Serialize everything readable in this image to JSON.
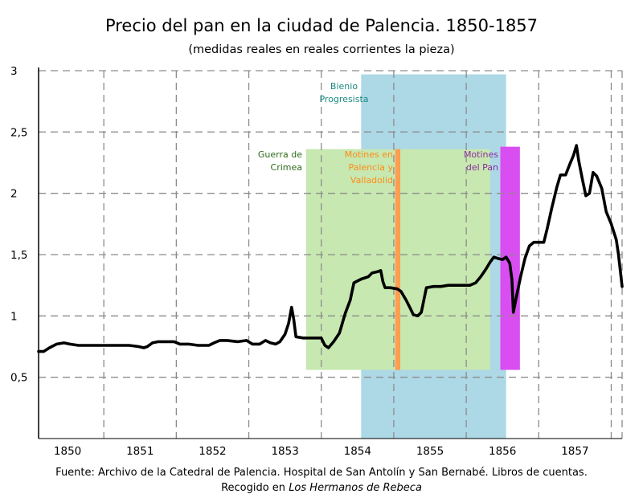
{
  "chart_data": {
    "type": "line",
    "title": "Precio del pan en la ciudad de Palencia. 1850-1857",
    "subtitle": "(medidas reales en reales corrientes la pieza)",
    "xlabel": "",
    "ylabel": "",
    "xlim": [
      1849.55,
      1857.6
    ],
    "ylim": [
      0,
      3
    ],
    "x_ticks": [
      1850,
      1851,
      1852,
      1853,
      1854,
      1855,
      1856,
      1857
    ],
    "x_tick_labels": [
      "1850",
      "1851",
      "1852",
      "1853",
      "1854",
      "1855",
      "1856",
      "1857"
    ],
    "y_ticks": [
      0.5,
      1,
      1.5,
      2,
      2.5,
      3
    ],
    "y_tick_labels": [
      "0,5",
      "1",
      "1,5",
      "2",
      "2,5",
      "3"
    ],
    "grid": true,
    "line_color": "#000000",
    "series": [
      {
        "name": "",
        "points": [
          [
            1849.55,
            0.71
          ],
          [
            1849.62,
            0.71
          ],
          [
            1849.7,
            0.74
          ],
          [
            1849.8,
            0.77
          ],
          [
            1849.9,
            0.78
          ],
          [
            1849.98,
            0.77
          ],
          [
            1850.1,
            0.76
          ],
          [
            1850.5,
            0.76
          ],
          [
            1850.8,
            0.76
          ],
          [
            1850.93,
            0.75
          ],
          [
            1851.0,
            0.74
          ],
          [
            1851.05,
            0.75
          ],
          [
            1851.12,
            0.78
          ],
          [
            1851.2,
            0.79
          ],
          [
            1851.42,
            0.79
          ],
          [
            1851.5,
            0.77
          ],
          [
            1851.62,
            0.77
          ],
          [
            1851.75,
            0.76
          ],
          [
            1851.9,
            0.76
          ],
          [
            1851.97,
            0.78
          ],
          [
            1852.05,
            0.8
          ],
          [
            1852.15,
            0.8
          ],
          [
            1852.3,
            0.79
          ],
          [
            1852.42,
            0.8
          ],
          [
            1852.5,
            0.77
          ],
          [
            1852.6,
            0.77
          ],
          [
            1852.68,
            0.8
          ],
          [
            1852.75,
            0.78
          ],
          [
            1852.82,
            0.77
          ],
          [
            1852.88,
            0.79
          ],
          [
            1852.95,
            0.85
          ],
          [
            1853.0,
            0.94
          ],
          [
            1853.04,
            1.07
          ],
          [
            1853.07,
            0.97
          ],
          [
            1853.1,
            0.83
          ],
          [
            1853.2,
            0.82
          ],
          [
            1853.45,
            0.82
          ],
          [
            1853.5,
            0.76
          ],
          [
            1853.55,
            0.74
          ],
          [
            1853.62,
            0.79
          ],
          [
            1853.7,
            0.86
          ],
          [
            1853.78,
            1.02
          ],
          [
            1853.85,
            1.13
          ],
          [
            1853.9,
            1.27
          ],
          [
            1854.0,
            1.3
          ],
          [
            1854.1,
            1.32
          ],
          [
            1854.15,
            1.35
          ],
          [
            1854.22,
            1.36
          ],
          [
            1854.27,
            1.37
          ],
          [
            1854.3,
            1.28
          ],
          [
            1854.33,
            1.23
          ],
          [
            1854.4,
            1.23
          ],
          [
            1854.5,
            1.22
          ],
          [
            1854.55,
            1.2
          ],
          [
            1854.62,
            1.13
          ],
          [
            1854.67,
            1.07
          ],
          [
            1854.72,
            1.01
          ],
          [
            1854.78,
            1.0
          ],
          [
            1854.83,
            1.03
          ],
          [
            1854.9,
            1.23
          ],
          [
            1855.0,
            1.24
          ],
          [
            1855.1,
            1.24
          ],
          [
            1855.2,
            1.25
          ],
          [
            1855.3,
            1.25
          ],
          [
            1855.5,
            1.25
          ],
          [
            1855.58,
            1.27
          ],
          [
            1855.65,
            1.32
          ],
          [
            1855.72,
            1.38
          ],
          [
            1855.78,
            1.44
          ],
          [
            1855.83,
            1.48
          ],
          [
            1855.88,
            1.47
          ],
          [
            1855.95,
            1.46
          ],
          [
            1856.0,
            1.48
          ],
          [
            1856.05,
            1.43
          ],
          [
            1856.08,
            1.3
          ],
          [
            1856.1,
            1.03
          ],
          [
            1856.14,
            1.15
          ],
          [
            1856.2,
            1.32
          ],
          [
            1856.26,
            1.47
          ],
          [
            1856.32,
            1.57
          ],
          [
            1856.38,
            1.6
          ],
          [
            1856.52,
            1.6
          ],
          [
            1856.57,
            1.72
          ],
          [
            1856.63,
            1.88
          ],
          [
            1856.7,
            2.05
          ],
          [
            1856.75,
            2.15
          ],
          [
            1856.82,
            2.15
          ],
          [
            1856.88,
            2.24
          ],
          [
            1856.93,
            2.31
          ],
          [
            1856.97,
            2.39
          ],
          [
            1857.0,
            2.27
          ],
          [
            1857.05,
            2.12
          ],
          [
            1857.1,
            1.98
          ],
          [
            1857.15,
            2.0
          ],
          [
            1857.2,
            2.17
          ],
          [
            1857.25,
            2.14
          ],
          [
            1857.32,
            2.04
          ],
          [
            1857.38,
            1.85
          ],
          [
            1857.45,
            1.75
          ],
          [
            1857.52,
            1.62
          ],
          [
            1857.55,
            1.5
          ],
          [
            1857.6,
            1.24
          ]
        ]
      }
    ],
    "annotations": [
      {
        "label_lines": [
          "Bienio",
          "Progresista"
        ],
        "x0": 1854.0,
        "x1": 1856.0,
        "y0": 0,
        "y1": 2.97,
        "fill": "#add8e6",
        "text_color": "#1a8a80"
      },
      {
        "label_lines": [
          "Guerra de",
          "Crimea"
        ],
        "x0": 1853.24,
        "x1": 1855.78,
        "y0": 0.56,
        "y1": 2.36,
        "fill": "#c7e8b0",
        "text_color": "#2e6b1a"
      },
      {
        "label_lines": [
          "Motines en",
          "Palencia y",
          "Valladolid"
        ],
        "x0": 1854.47,
        "x1": 1854.54,
        "y0": 0.56,
        "y1": 2.36,
        "fill": "#ff9e50",
        "text_color": "#ff8c1a"
      },
      {
        "label_lines": [
          "Motines",
          "del Pan"
        ],
        "x0": 1855.92,
        "x1": 1856.19,
        "y0": 0.56,
        "y1": 2.38,
        "fill": "#d94ef0",
        "text_color": "#8a2da0"
      }
    ]
  },
  "source": {
    "line1": "Fuente: Archivo de la Catedral de Palencia. Hospital de San Antolín y San Bernabé. Libros de cuentas.",
    "line2_prefix": "Recogido en ",
    "line2_italic": "Los Hermanos de Rebeca"
  }
}
